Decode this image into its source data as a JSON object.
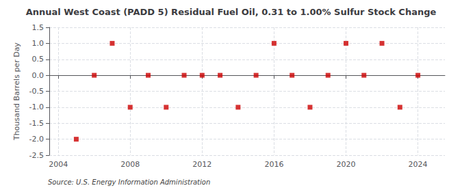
{
  "chart_data": {
    "type": "scatter",
    "title": "Annual West Coast (PADD 5) Residual Fuel Oil, 0.31 to 1.00% Sulfur Stock Change",
    "ylabel": "Thousand Barrels per Day",
    "annotation": "Source: U.S. Energy Information Administration",
    "x": [
      2005,
      2006,
      2007,
      2008,
      2009,
      2010,
      2011,
      2012,
      2013,
      2014,
      2015,
      2016,
      2017,
      2018,
      2019,
      2020,
      2021,
      2022,
      2023,
      2024
    ],
    "values": [
      -2.0,
      0.0,
      1.0,
      -1.0,
      0.0,
      -1.0,
      0.0,
      0.0,
      0.0,
      -1.0,
      0.0,
      1.0,
      0.0,
      -1.0,
      0.0,
      1.0,
      0.0,
      1.0,
      -1.0,
      0.0
    ],
    "color": "#cc0000",
    "marker": "square",
    "xlim": [
      2003.5,
      2025.5
    ],
    "xticks": [
      2004,
      2008,
      2012,
      2016,
      2020,
      2024
    ],
    "ylim": [
      -2.5,
      1.5
    ],
    "yticks": [
      -2.5,
      {
        "value": -2.0,
        "label": "-2.0"
      },
      -1.5,
      {
        "value": -1.0,
        "label": "-1.0"
      },
      -0.5,
      {
        "value": 0.0,
        "label": "0.0"
      },
      0.5,
      {
        "value": 1.0,
        "label": "1.0"
      },
      1.5
    ],
    "grid": true
  }
}
